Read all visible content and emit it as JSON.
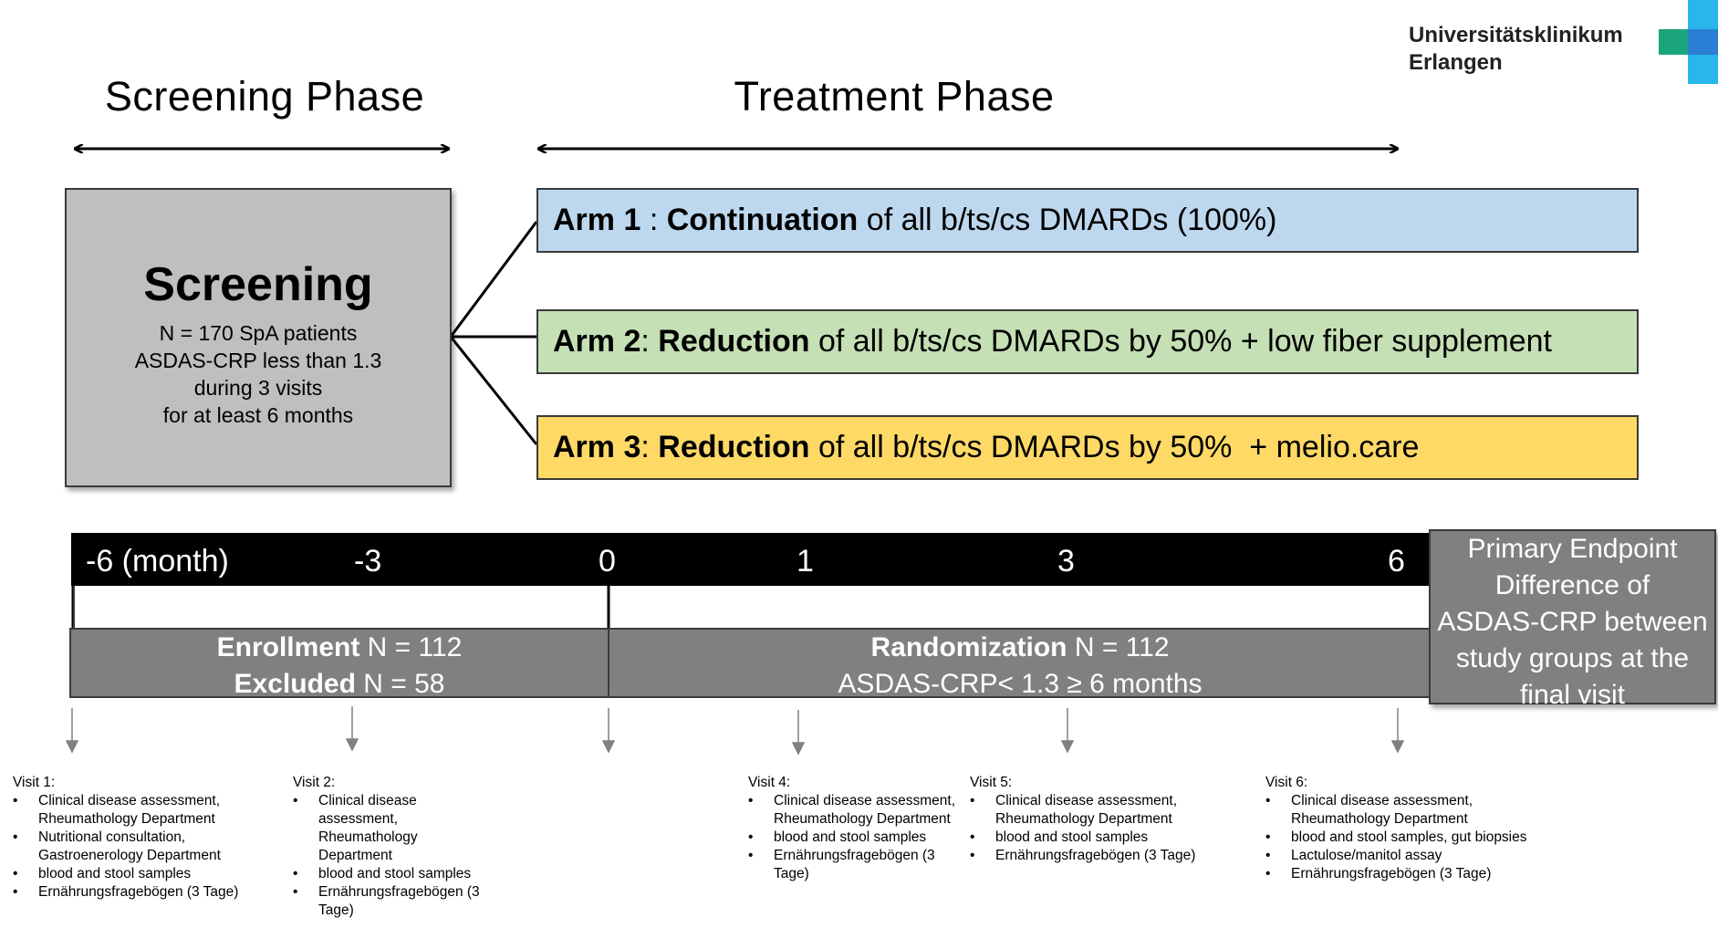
{
  "logo": {
    "line1": "Universitätsklinikum",
    "line2": "Erlangen",
    "colors": [
      "#1aa67a",
      "#2a7fd4",
      "#29b6ea"
    ]
  },
  "phases": {
    "screening": "Screening Phase",
    "treatment": "Treatment Phase"
  },
  "screening_box": {
    "title": "Screening",
    "lines": [
      "N = 170 SpA patients",
      "ASDAS-CRP  less than 1.3",
      "during 3 visits",
      "for at least  6 months"
    ]
  },
  "arms": [
    {
      "bold1": "Arm 1",
      "sep": " : ",
      "bold2": "Continuation",
      "rest": " of all b/ts/cs DMARDs (100%)",
      "color": "#bdd7ee"
    },
    {
      "bold1": "Arm 2",
      "sep": ": ",
      "bold2": "Reduction",
      "rest": " of all b/ts/cs DMARDs by 50% + low fiber supplement",
      "color": "#c5e0b4"
    },
    {
      "bold1": "Arm 3",
      "sep": ": ",
      "bold2": "Reduction",
      "rest": " of all b/ts/cs DMARDs by 50%  + melio.care",
      "color": "#ffd966"
    }
  ],
  "timeline": {
    "ticks": [
      "-6 (month)",
      "-3",
      "0",
      "1",
      "3",
      "6"
    ]
  },
  "enrollment": {
    "bold1": "Enrollment",
    "rest1": " N = 112",
    "bold2": "Excluded",
    "rest2": " N = 58"
  },
  "randomization": {
    "bold": "Randomization",
    "rest": " N = 112",
    "line2": "ASDAS-CRP< 1.3 ≥ 6 months"
  },
  "endpoint": {
    "lines": [
      "Primary Endpoint",
      "Difference of",
      "ASDAS-CRP between",
      "study groups at the",
      "final visit"
    ]
  },
  "visits": [
    {
      "title": "Visit 1:",
      "items": [
        "Clinical disease assessment, Rheumathology Department",
        "Nutritional consultation, Gastroenerology Department",
        "blood and stool samples",
        "Ernährungsfragebögen (3 Tage)"
      ]
    },
    {
      "title": "Visit 2:",
      "items": [
        "Clinical disease assessment, Rheumathology Department",
        "blood and stool samples",
        "Ernährungsfragebögen (3 Tage)"
      ]
    },
    {
      "title": "Visit 4:",
      "items": [
        "Clinical disease assessment, Rheumathology Department",
        "blood and stool samples",
        "Ernährungsfragebögen (3 Tage)"
      ]
    },
    {
      "title": "Visit 5:",
      "items": [
        "Clinical disease assessment, Rheumathology Department",
        "blood and stool samples",
        "Ernährungsfragebögen (3 Tage)"
      ]
    },
    {
      "title": "Visit 6:",
      "items": [
        "Clinical disease assessment, Rheumathology Department",
        "blood and stool samples, gut biopsies",
        "Lactulose/manitol assay",
        "Ernährungsfragebögen (3 Tage)"
      ]
    }
  ]
}
